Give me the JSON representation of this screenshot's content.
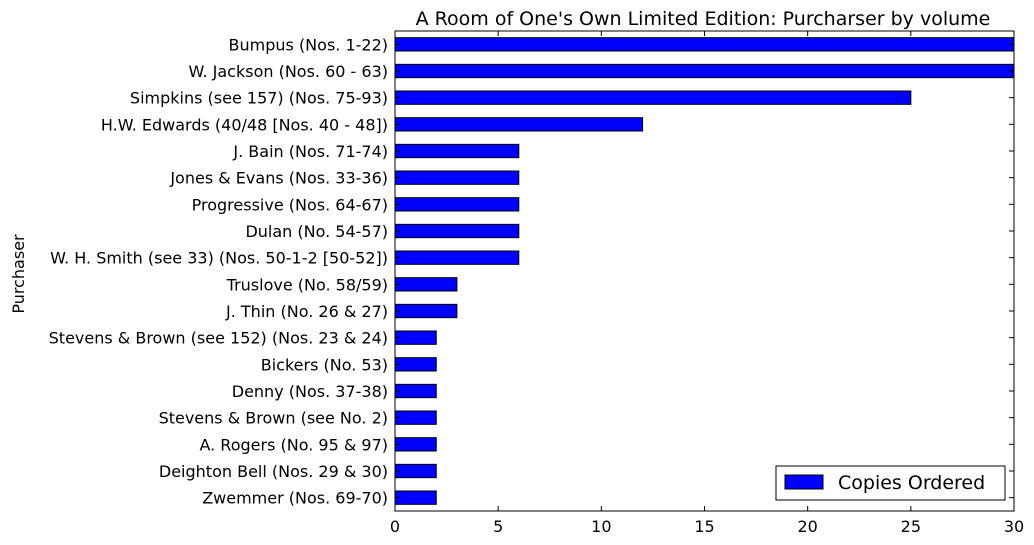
{
  "chart_data": {
    "type": "bar",
    "orientation": "horizontal",
    "title": "A Room of One's Own Limited Edition: Purcharser by volume",
    "ylabel": "Purchaser",
    "xlabel": "",
    "xlim": [
      0,
      30
    ],
    "xticks": [
      0,
      5,
      10,
      15,
      20,
      25,
      30
    ],
    "grid": false,
    "legend_position": "lower-right",
    "series": [
      {
        "name": "Copies Ordered",
        "color": "#0000ff",
        "categories": [
          "Bumpus (Nos. 1-22)",
          "W. Jackson (Nos. 60 - 63)",
          "Simpkins (see 157) (Nos. 75-93)",
          "H.W. Edwards (40/48 [Nos. 40 - 48])",
          "J. Bain (Nos. 71-74)",
          "Jones & Evans (Nos. 33-36)",
          "Progressive (Nos. 64-67)",
          "Dulan (No. 54-57)",
          "W. H. Smith (see 33) (Nos. 50-1-2 [50-52])",
          "Truslove (No. 58/59)",
          "J. Thin (No. 26 & 27)",
          "Stevens & Brown (see 152) (Nos. 23 & 24)",
          "Bickers (No. 53)",
          "Denny (Nos. 37-38)",
          "Stevens & Brown (see No. 2) ",
          "A. Rogers (No. 95 & 97)",
          "Deighton Bell (Nos. 29 & 30)",
          "Zwemmer (Nos. 69-70)"
        ],
        "values": [
          30,
          30,
          25,
          12,
          6,
          6,
          6,
          6,
          6,
          3,
          3,
          2,
          2,
          2,
          2,
          2,
          2,
          2
        ]
      }
    ]
  }
}
